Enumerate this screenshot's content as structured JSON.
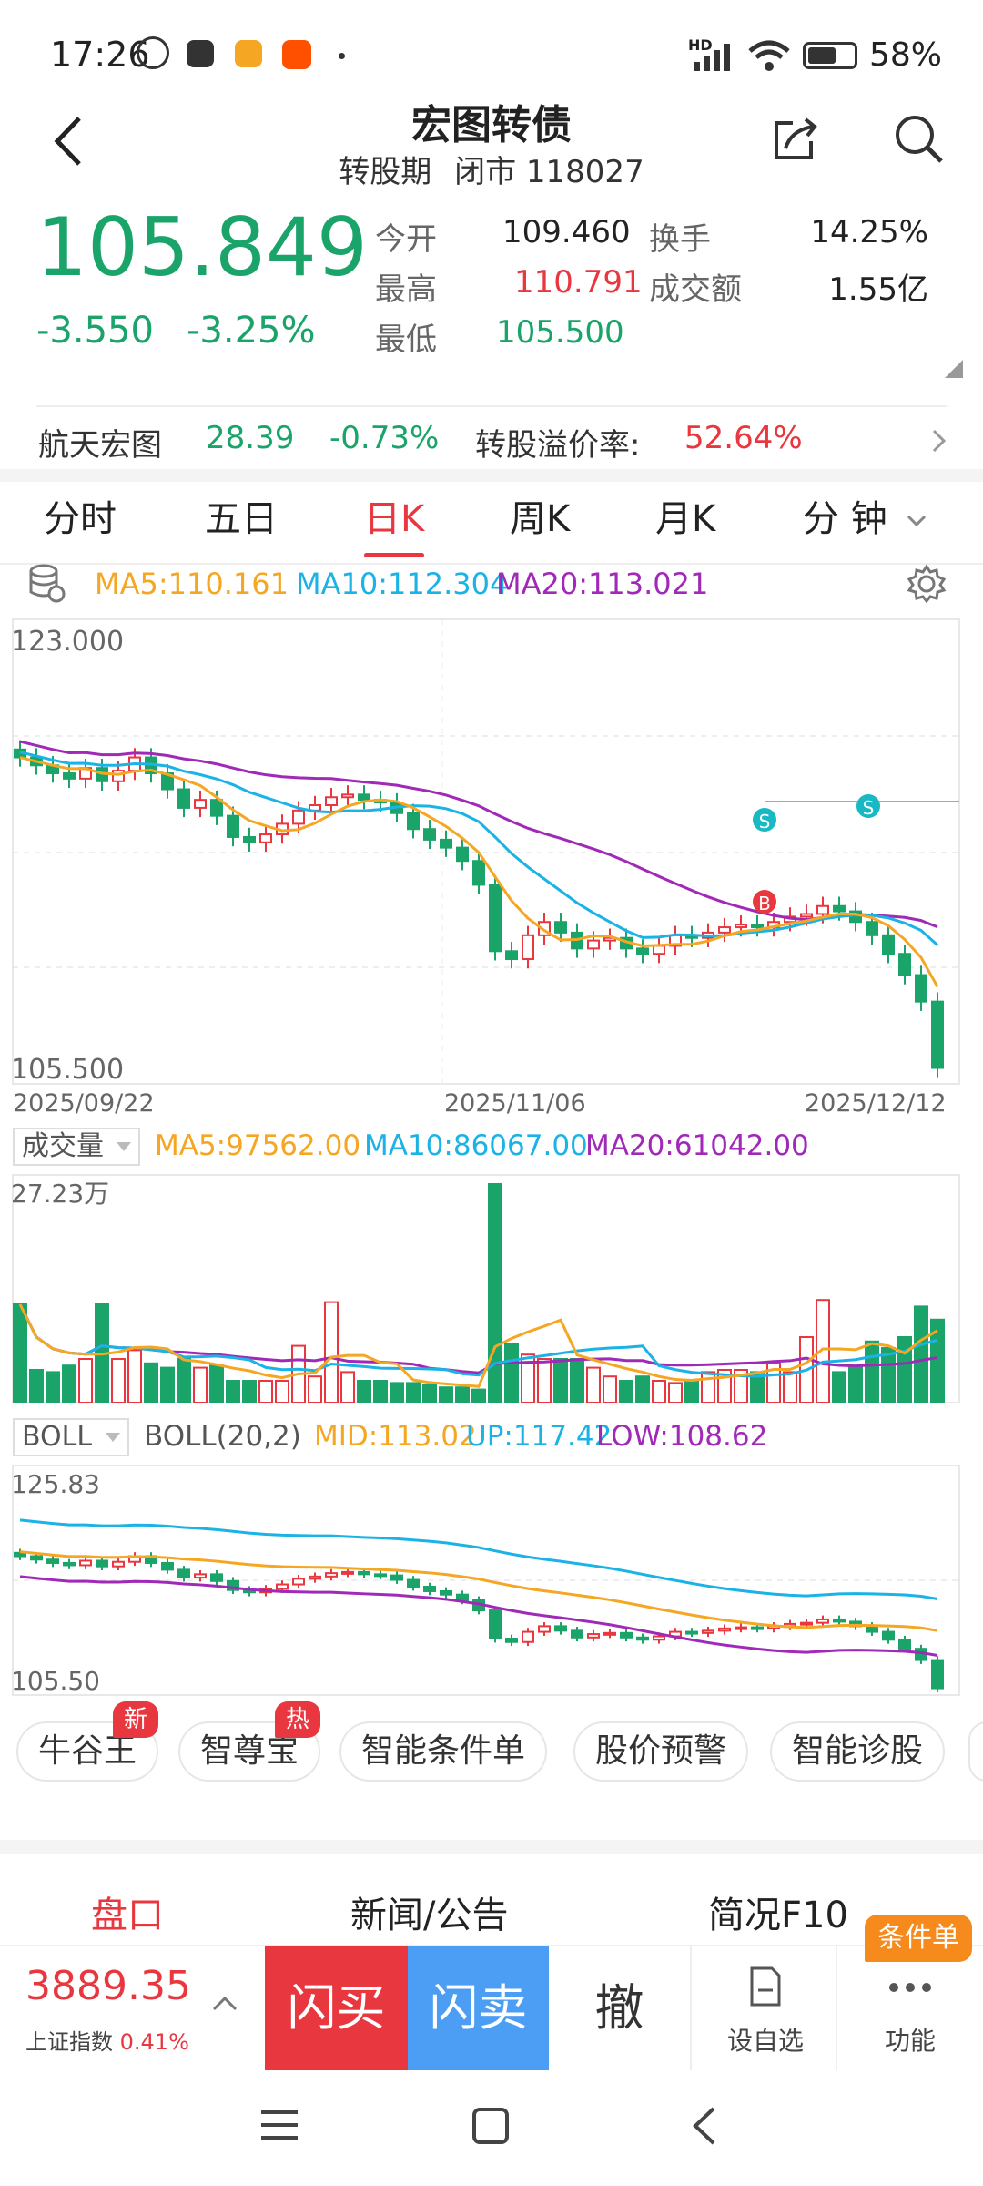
{
  "status_bar": {
    "time": "17:26",
    "battery": "58%",
    "network": "HD"
  },
  "header": {
    "title": "宏图转债",
    "phase": "转股期",
    "market_state": "闭市",
    "code": "118027"
  },
  "quote": {
    "price": "105.849",
    "change": "-3.550",
    "change_pct": "-3.25%",
    "open_label": "今开",
    "open": "109.460",
    "high_label": "最高",
    "high": "110.791",
    "low_label": "最低",
    "low": "105.500",
    "turnover_label": "换手",
    "turnover": "14.25%",
    "amount_label": "成交额",
    "amount": "1.55亿"
  },
  "underlying": {
    "name": "航天宏图",
    "price": "28.39",
    "change_pct": "-0.73%",
    "premium_label": "转股溢价率:",
    "premium": "52.64%"
  },
  "tabs": [
    {
      "label": "分时"
    },
    {
      "label": "五日"
    },
    {
      "label": "日K"
    },
    {
      "label": "周K"
    },
    {
      "label": "月K"
    },
    {
      "label": "分 钟"
    }
  ],
  "ma": {
    "ma5": "MA5:110.161",
    "ma10": "MA10:112.304",
    "ma20": "MA20:113.021"
  },
  "kchart": {
    "ymax": "123.000",
    "ymin": "105.500",
    "dates": [
      "2025/09/22",
      "2025/11/06",
      "2025/12/12"
    ],
    "markers": {
      "s": "S",
      "b": "B"
    }
  },
  "volume": {
    "label": "成交量",
    "ma5": "MA5:97562.00",
    "ma10": "MA10:86067.00",
    "ma20": "MA20:61042.00",
    "ymax": "27.23万"
  },
  "boll": {
    "label": "BOLL",
    "params": "BOLL(20,2)",
    "mid": "MID:113.02",
    "up": "UP:117.42",
    "low": "LOW:108.62",
    "ymax": "125.83",
    "ymin": "105.50"
  },
  "tools": [
    {
      "label": "牛谷王",
      "badge": "新"
    },
    {
      "label": "智尊宝",
      "badge": "热"
    },
    {
      "label": "智能条件单"
    },
    {
      "label": "股价预警"
    },
    {
      "label": "智能诊股"
    }
  ],
  "bottom_tabs": [
    {
      "label": "盘口"
    },
    {
      "label": "新闻/公告"
    },
    {
      "label": "简况F10"
    }
  ],
  "trade": {
    "index_value": "3889.35",
    "index_name": "上证指数",
    "index_change": "0.41%",
    "buy": "闪买",
    "sell": "闪卖",
    "cancel": "撤",
    "watch": "设自选",
    "more": "功能",
    "condition_badge": "条件单"
  },
  "colors": {
    "up": "#e8373f",
    "down": "#1aa46a",
    "ma5": "#f5a623",
    "ma10": "#1bb3e6",
    "ma20": "#a129b8"
  }
}
